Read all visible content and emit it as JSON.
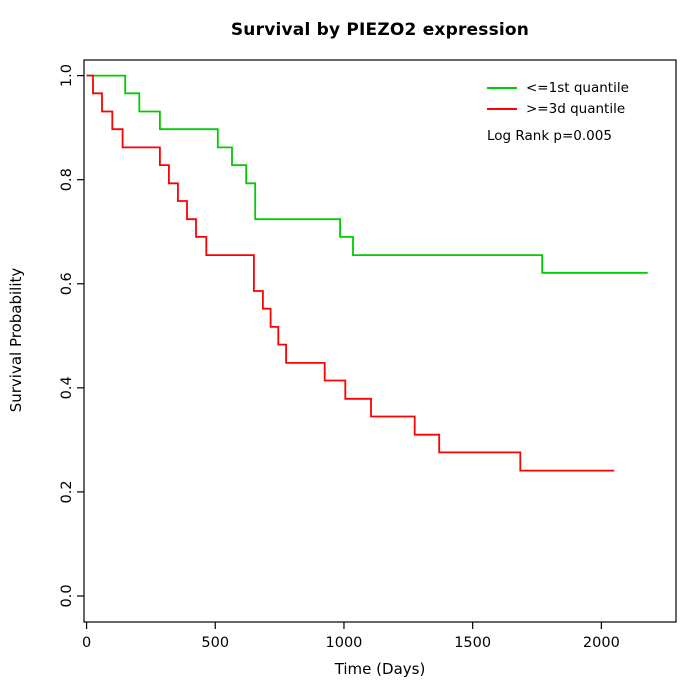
{
  "chart_data": {
    "type": "line",
    "variant": "kaplan-meier-step",
    "title": "Survival by PIEZO2 expression",
    "xlabel": "Time (Days)",
    "ylabel": "Survival Probability",
    "xlim": [
      -10,
      2290
    ],
    "ylim": [
      -0.05,
      1.03
    ],
    "xticks": [
      0,
      500,
      1000,
      1500,
      2000
    ],
    "xtick_labels": [
      "0",
      "500",
      "1000",
      "1500",
      "2000"
    ],
    "yticks": [
      0.0,
      0.2,
      0.4,
      0.6,
      0.8,
      1.0
    ],
    "ytick_labels": [
      "0.0",
      "0.2",
      "0.4",
      "0.6",
      "0.8",
      "1.0"
    ],
    "grid": false,
    "axis_color": "#000000",
    "legend": {
      "position": "top-right",
      "box": false
    },
    "annotation": "Log Rank p=0.005",
    "series": [
      {
        "name": "<=1st quantile",
        "color": "#00CC00",
        "end_time": 2180,
        "points": [
          [
            0,
            1.0
          ],
          [
            150,
            0.966
          ],
          [
            205,
            0.931
          ],
          [
            285,
            0.897
          ],
          [
            510,
            0.862
          ],
          [
            565,
            0.828
          ],
          [
            620,
            0.793
          ],
          [
            655,
            0.724
          ],
          [
            985,
            0.69
          ],
          [
            1035,
            0.655
          ],
          [
            1770,
            0.621
          ]
        ]
      },
      {
        "name": ">=3d quantile",
        "color": "#FF0000",
        "end_time": 2050,
        "points": [
          [
            0,
            1.0
          ],
          [
            25,
            0.966
          ],
          [
            60,
            0.931
          ],
          [
            100,
            0.897
          ],
          [
            140,
            0.862
          ],
          [
            285,
            0.828
          ],
          [
            320,
            0.793
          ],
          [
            355,
            0.759
          ],
          [
            390,
            0.724
          ],
          [
            425,
            0.69
          ],
          [
            465,
            0.655
          ],
          [
            650,
            0.586
          ],
          [
            685,
            0.552
          ],
          [
            715,
            0.517
          ],
          [
            745,
            0.483
          ],
          [
            775,
            0.448
          ],
          [
            925,
            0.414
          ],
          [
            1005,
            0.379
          ],
          [
            1105,
            0.345
          ],
          [
            1275,
            0.31
          ],
          [
            1370,
            0.276
          ],
          [
            1685,
            0.241
          ]
        ]
      }
    ]
  }
}
